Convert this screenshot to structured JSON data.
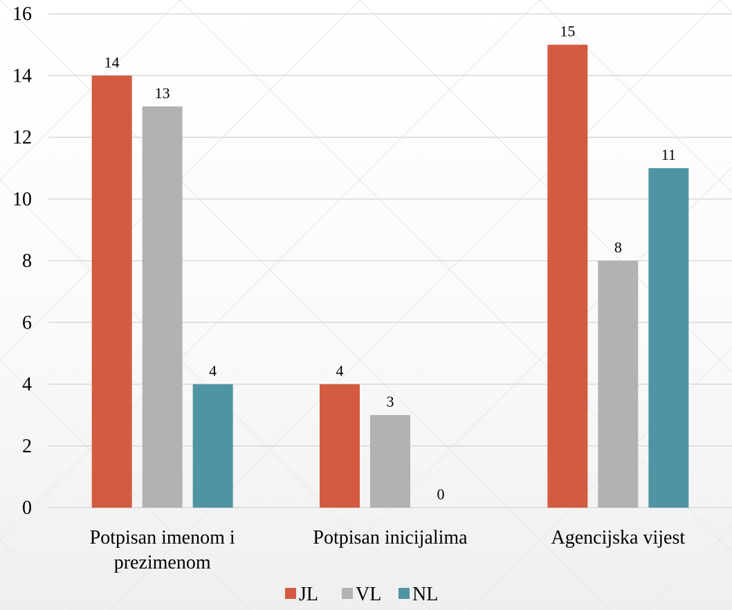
{
  "chart_data": {
    "type": "bar",
    "categories": [
      [
        "Potpisan imenom i",
        "prezimenom"
      ],
      [
        "Potpisan inicijalima"
      ],
      [
        "Agencijska vijest"
      ]
    ],
    "series": [
      {
        "name": "JL",
        "values": [
          14,
          4,
          15
        ],
        "color": "#d35b3f"
      },
      {
        "name": "VL",
        "values": [
          13,
          3,
          8
        ],
        "color": "#b2b2b2"
      },
      {
        "name": "NL",
        "values": [
          4,
          0,
          11
        ],
        "color": "#4f94a3"
      }
    ],
    "ylim": [
      0,
      16
    ],
    "yticks": [
      0,
      2,
      4,
      6,
      8,
      10,
      12,
      14,
      16
    ],
    "grid": true,
    "legend_position": "bottom-center",
    "data_labels": true
  }
}
